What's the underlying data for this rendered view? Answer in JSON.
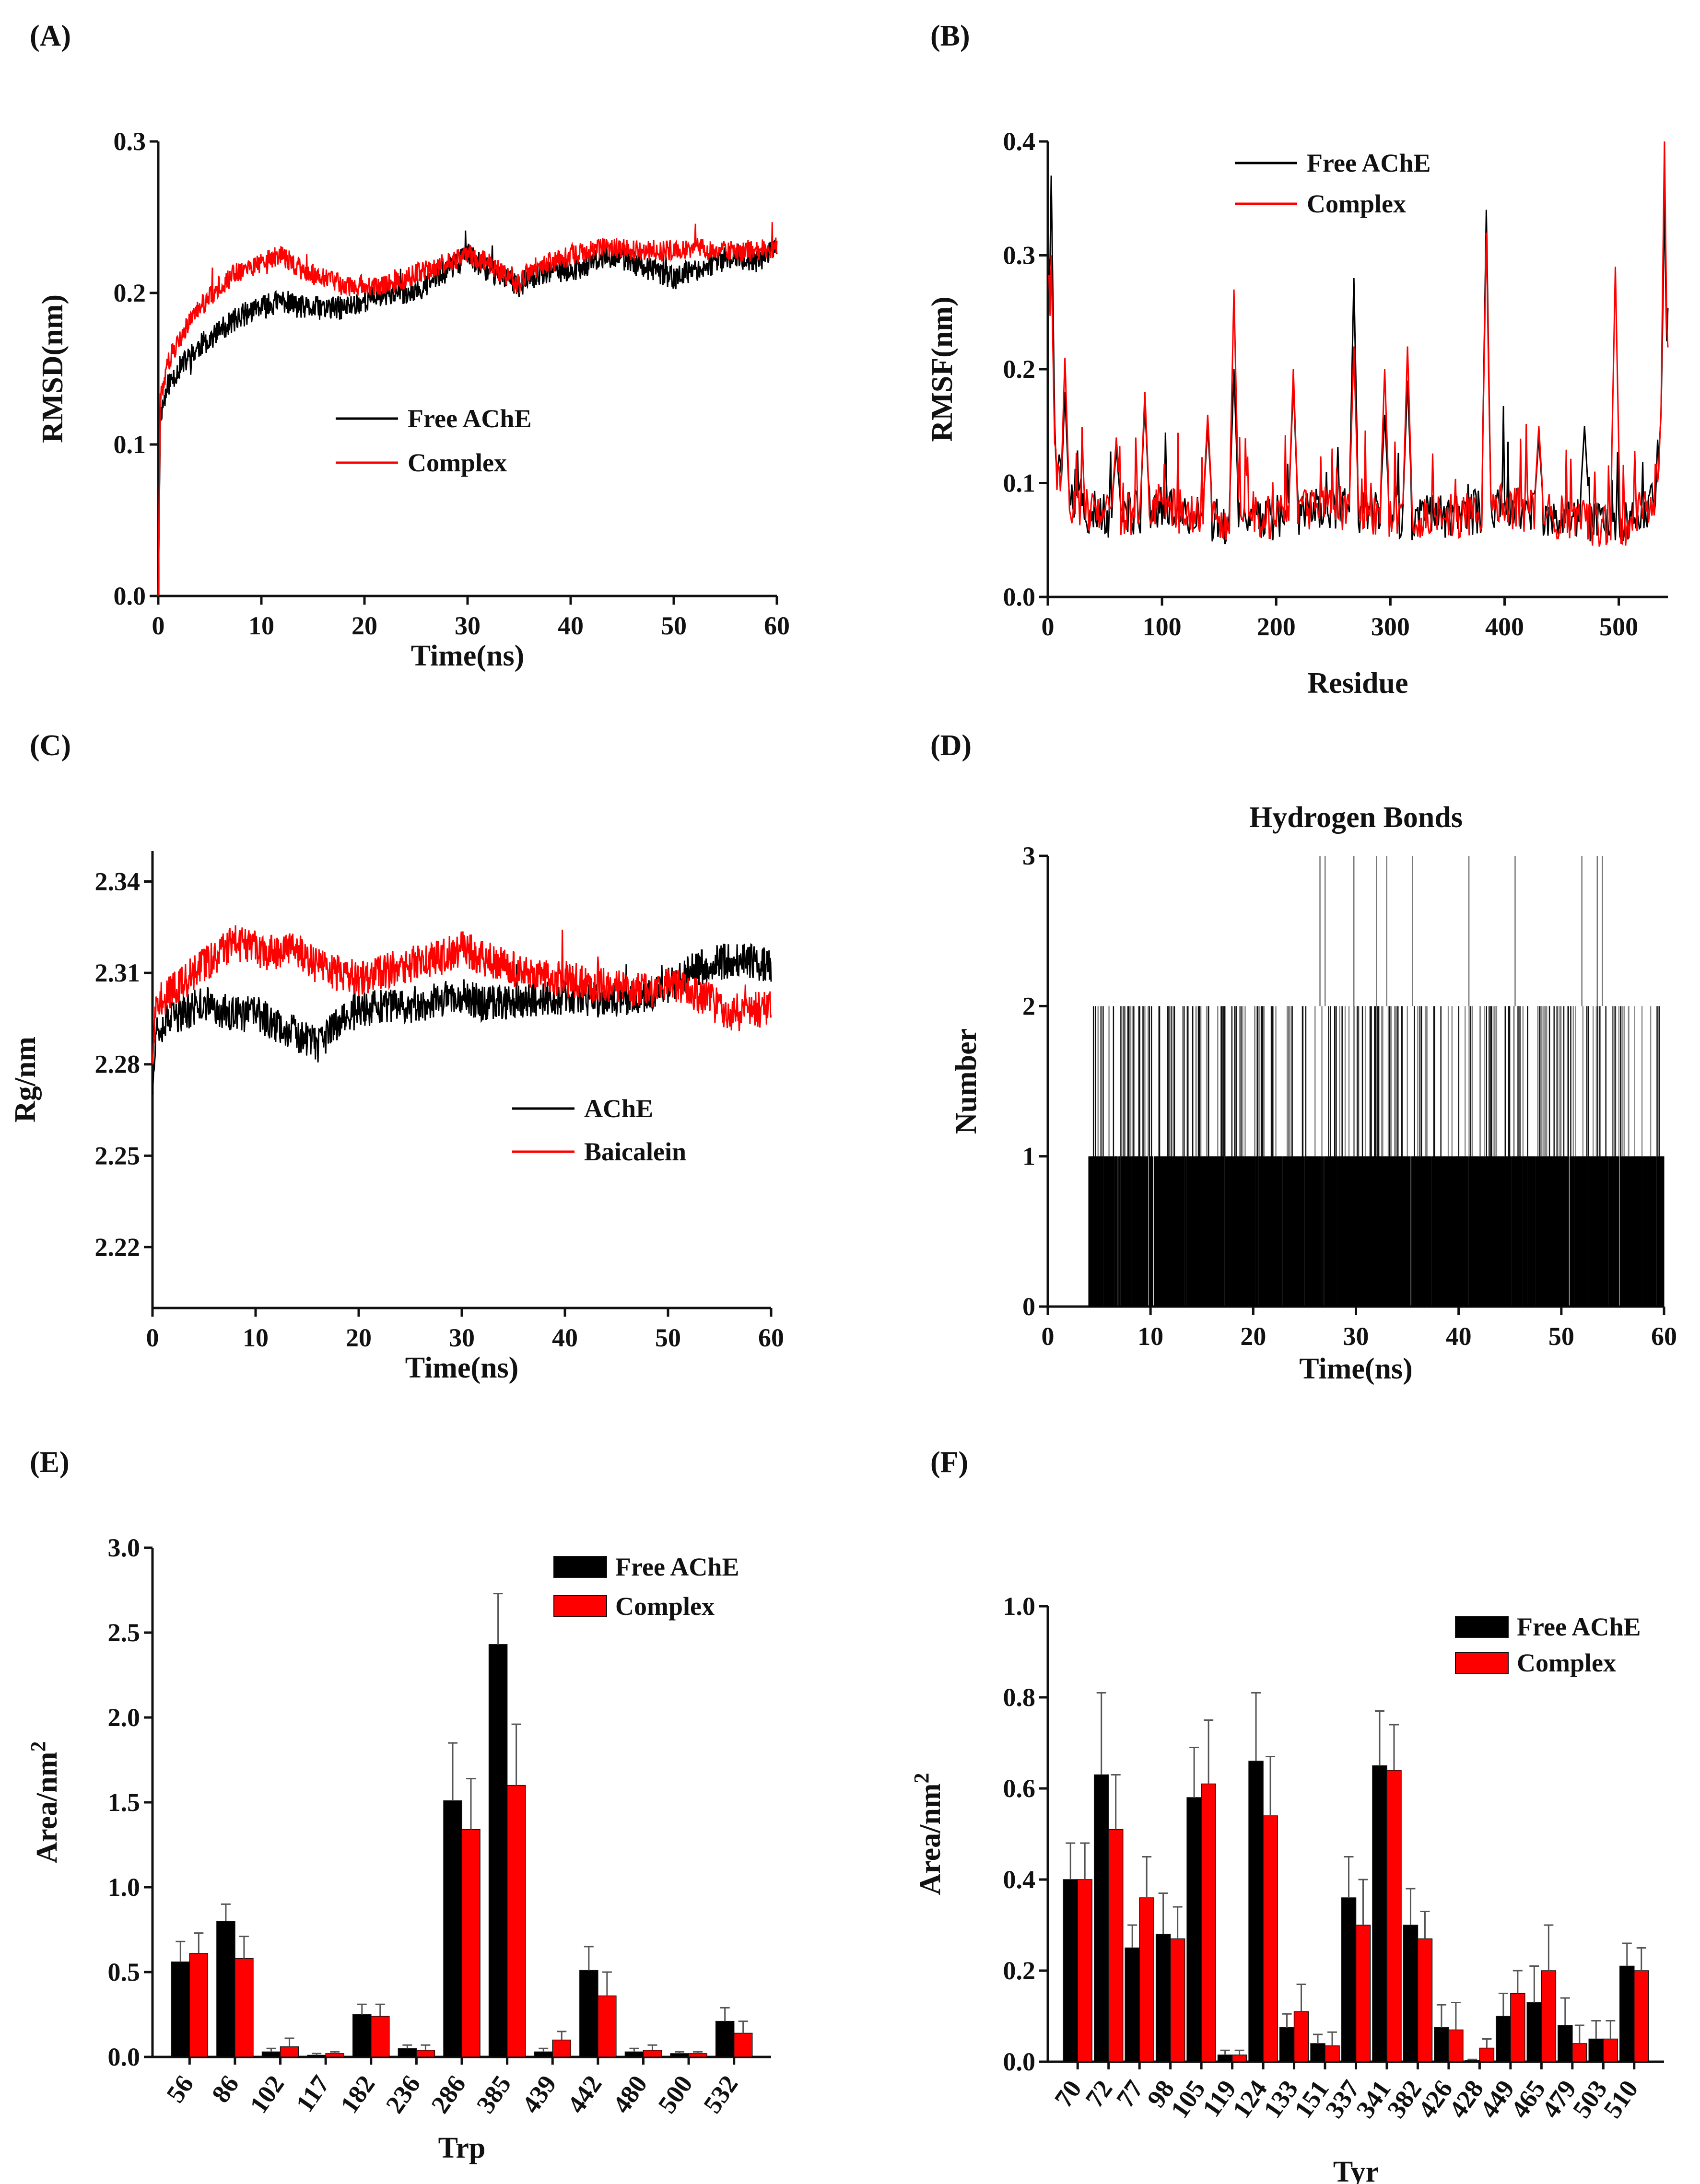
{
  "chart_data": [
    {
      "id": "A",
      "panel_label": "(A)",
      "type": "line",
      "xlabel": "Time(ns)",
      "ylabel": "RMSD(nm)",
      "xlim": [
        0,
        60
      ],
      "ylim": [
        0,
        0.3
      ],
      "xticks": [
        0,
        10,
        20,
        30,
        40,
        50,
        60
      ],
      "yticks": [
        "0.0",
        "0.1",
        "0.2",
        "0.3"
      ],
      "legend": "center-right",
      "series": [
        {
          "name": "Free AChE",
          "color": "#000000",
          "x": [
            0,
            0.2,
            1,
            2,
            4,
            6,
            8,
            10,
            12,
            14,
            16,
            18,
            20,
            22,
            24,
            26,
            28,
            30,
            32,
            34,
            35,
            36,
            38,
            40,
            42,
            44,
            46,
            48,
            50,
            52,
            54,
            56,
            58,
            60
          ],
          "y": [
            0,
            0.12,
            0.14,
            0.15,
            0.165,
            0.175,
            0.185,
            0.19,
            0.195,
            0.19,
            0.19,
            0.19,
            0.195,
            0.2,
            0.2,
            0.205,
            0.215,
            0.225,
            0.215,
            0.21,
            0.205,
            0.21,
            0.215,
            0.215,
            0.22,
            0.225,
            0.22,
            0.215,
            0.21,
            0.215,
            0.22,
            0.225,
            0.22,
            0.23
          ],
          "noise": 0.008
        },
        {
          "name": "Complex",
          "color": "#ff0000",
          "x": [
            0,
            0.2,
            1,
            2,
            4,
            6,
            8,
            10,
            12,
            14,
            16,
            18,
            20,
            22,
            24,
            26,
            28,
            30,
            32,
            34,
            35,
            36,
            38,
            40,
            42,
            44,
            46,
            48,
            50,
            52,
            54,
            56,
            58,
            60
          ],
          "y": [
            0,
            0.13,
            0.155,
            0.17,
            0.19,
            0.205,
            0.215,
            0.22,
            0.225,
            0.215,
            0.21,
            0.205,
            0.205,
            0.205,
            0.21,
            0.215,
            0.22,
            0.225,
            0.22,
            0.21,
            0.205,
            0.215,
            0.22,
            0.225,
            0.228,
            0.23,
            0.228,
            0.228,
            0.228,
            0.23,
            0.228,
            0.228,
            0.228,
            0.23
          ],
          "noise": 0.007
        }
      ]
    },
    {
      "id": "B",
      "panel_label": "(B)",
      "type": "line",
      "xlabel": "Residue",
      "ylabel": "RMSF(nm)",
      "xlim": [
        0,
        543
      ],
      "ylim": [
        0,
        0.4
      ],
      "xticks": [
        0,
        100,
        200,
        300,
        400,
        500
      ],
      "yticks": [
        "0.0",
        "0.1",
        "0.2",
        "0.3",
        "0.4"
      ],
      "legend": "top-left",
      "baseline": [
        [
          0,
          0.33
        ],
        [
          5,
          0.12
        ],
        [
          20,
          0.08
        ],
        [
          60,
          0.07
        ],
        [
          100,
          0.08
        ],
        [
          150,
          0.065
        ],
        [
          200,
          0.07
        ],
        [
          250,
          0.08
        ],
        [
          300,
          0.07
        ],
        [
          350,
          0.07
        ],
        [
          400,
          0.08
        ],
        [
          450,
          0.07
        ],
        [
          500,
          0.06
        ],
        [
          530,
          0.08
        ],
        [
          543,
          0.2
        ]
      ],
      "series": [
        {
          "name": "Free AChE",
          "color": "#000000",
          "peaks": [
            [
              3,
              0.37
            ],
            [
              15,
              0.18
            ],
            [
              60,
              0.13
            ],
            [
              85,
              0.17
            ],
            [
              140,
              0.15
            ],
            [
              163,
              0.2
            ],
            [
              215,
              0.19
            ],
            [
              268,
              0.28
            ],
            [
              295,
              0.16
            ],
            [
              315,
              0.19
            ],
            [
              384,
              0.34
            ],
            [
              430,
              0.14
            ],
            [
              470,
              0.15
            ],
            [
              540,
              0.35
            ]
          ],
          "noise": 0.02
        },
        {
          "name": "Complex",
          "color": "#ff0000",
          "peaks": [
            [
              3,
              0.3
            ],
            [
              15,
              0.21
            ],
            [
              60,
              0.14
            ],
            [
              85,
              0.18
            ],
            [
              140,
              0.16
            ],
            [
              163,
              0.27
            ],
            [
              215,
              0.2
            ],
            [
              268,
              0.22
            ],
            [
              295,
              0.2
            ],
            [
              315,
              0.22
            ],
            [
              384,
              0.32
            ],
            [
              430,
              0.15
            ],
            [
              497,
              0.29
            ],
            [
              540,
              0.4
            ]
          ],
          "noise": 0.02
        }
      ]
    },
    {
      "id": "C",
      "panel_label": "(C)",
      "type": "line",
      "xlabel": "Time(ns)",
      "ylabel": "Rg/nm",
      "xlim": [
        0,
        60
      ],
      "ylim": [
        2.2,
        2.35
      ],
      "xticks": [
        0,
        10,
        20,
        30,
        40,
        50,
        60
      ],
      "yticks": [
        "2.22",
        "2.25",
        "2.28",
        "2.31",
        "2.34"
      ],
      "legend": "center-right",
      "series": [
        {
          "name": "AChE",
          "color": "#000000",
          "x": [
            0,
            0.3,
            2,
            5,
            8,
            10,
            12,
            14,
            16,
            18,
            20,
            24,
            28,
            30,
            32,
            36,
            40,
            44,
            48,
            50,
            52,
            54,
            56,
            58,
            60
          ],
          "y": [
            2.27,
            2.292,
            2.295,
            2.3,
            2.296,
            2.297,
            2.293,
            2.29,
            2.286,
            2.294,
            2.298,
            2.299,
            2.301,
            2.303,
            2.3,
            2.301,
            2.302,
            2.301,
            2.303,
            2.306,
            2.31,
            2.313,
            2.314,
            2.314,
            2.312
          ],
          "noise": 0.006
        },
        {
          "name": "Baicalein",
          "color": "#ff0000",
          "x": [
            0,
            0.3,
            2,
            4,
            6,
            8,
            10,
            12,
            14,
            16,
            18,
            20,
            24,
            28,
            30,
            32,
            36,
            40,
            44,
            48,
            50,
            52,
            54,
            56,
            58,
            60
          ],
          "y": [
            2.28,
            2.3,
            2.304,
            2.31,
            2.315,
            2.32,
            2.318,
            2.316,
            2.318,
            2.312,
            2.31,
            2.308,
            2.312,
            2.315,
            2.318,
            2.315,
            2.31,
            2.308,
            2.306,
            2.304,
            2.306,
            2.304,
            2.301,
            2.296,
            2.298,
            2.298
          ],
          "noise": 0.006
        }
      ]
    },
    {
      "id": "D",
      "panel_label": "(D)",
      "type": "bar",
      "title": "Hydrogen Bonds",
      "xlabel": "Time(ns)",
      "ylabel": "Number",
      "xlim": [
        0,
        60
      ],
      "ylim": [
        0,
        3
      ],
      "xticks": [
        0,
        10,
        20,
        30,
        40,
        50,
        60
      ],
      "yticks": [
        "0",
        "1",
        "2",
        "3"
      ],
      "onset_ns": 4,
      "three_bond_times": [
        26.5,
        27,
        29.8,
        32,
        33,
        35.5,
        41,
        45.5,
        52,
        53.5,
        54
      ],
      "series": [
        {
          "name": "Hydrogen Bonds",
          "color": "#000000"
        }
      ]
    },
    {
      "id": "E",
      "panel_label": "(E)",
      "type": "bar",
      "xlabel": "Trp",
      "ylabel": "Area/nm",
      "ylabel_sup": "2",
      "ylim": [
        0,
        3.0
      ],
      "yticks": [
        "0.0",
        "0.5",
        "1.0",
        "1.5",
        "2.0",
        "2.5",
        "3.0"
      ],
      "legend": "top-right",
      "categories": [
        "56",
        "86",
        "102",
        "117",
        "182",
        "236",
        "286",
        "385",
        "439",
        "442",
        "480",
        "500",
        "532"
      ],
      "series": [
        {
          "name": "Free AChE",
          "color": "#000000",
          "values": [
            0.56,
            0.8,
            0.03,
            0.01,
            0.25,
            0.05,
            1.51,
            2.43,
            0.03,
            0.51,
            0.03,
            0.02,
            0.21
          ],
          "errors": [
            0.12,
            0.1,
            0.02,
            0.01,
            0.06,
            0.02,
            0.34,
            0.3,
            0.02,
            0.14,
            0.02,
            0.01,
            0.08
          ]
        },
        {
          "name": "Complex",
          "color": "#ff0000",
          "values": [
            0.61,
            0.58,
            0.06,
            0.02,
            0.24,
            0.04,
            1.34,
            1.6,
            0.1,
            0.36,
            0.04,
            0.02,
            0.14
          ],
          "errors": [
            0.12,
            0.13,
            0.05,
            0.01,
            0.07,
            0.03,
            0.3,
            0.36,
            0.05,
            0.14,
            0.03,
            0.01,
            0.07
          ]
        }
      ]
    },
    {
      "id": "F",
      "panel_label": "(F)",
      "type": "bar",
      "xlabel": "Tyr",
      "ylabel": "Area/nm",
      "ylabel_sup": "2",
      "ylim": [
        0,
        1.0
      ],
      "yticks": [
        "0.0",
        "0.2",
        "0.4",
        "0.6",
        "0.8",
        "1.0"
      ],
      "legend": "top-right",
      "categories": [
        "70",
        "72",
        "77",
        "98",
        "105",
        "119",
        "124",
        "133",
        "151",
        "337",
        "341",
        "382",
        "426",
        "428",
        "449",
        "465",
        "479",
        "503",
        "510"
      ],
      "series": [
        {
          "name": "Free AChE",
          "color": "#000000",
          "values": [
            0.4,
            0.63,
            0.25,
            0.28,
            0.58,
            0.015,
            0.66,
            0.075,
            0.04,
            0.36,
            0.65,
            0.3,
            0.075,
            0.003,
            0.1,
            0.13,
            0.08,
            0.05,
            0.21
          ],
          "errors": [
            0.08,
            0.18,
            0.05,
            0.09,
            0.11,
            0.01,
            0.15,
            0.03,
            0.02,
            0.09,
            0.12,
            0.08,
            0.05,
            0.002,
            0.05,
            0.08,
            0.06,
            0.04,
            0.05
          ]
        },
        {
          "name": "Complex",
          "color": "#ff0000",
          "values": [
            0.4,
            0.51,
            0.36,
            0.27,
            0.61,
            0.015,
            0.54,
            0.11,
            0.035,
            0.3,
            0.64,
            0.27,
            0.07,
            0.03,
            0.15,
            0.2,
            0.04,
            0.05,
            0.2
          ],
          "errors": [
            0.08,
            0.12,
            0.09,
            0.07,
            0.14,
            0.01,
            0.13,
            0.06,
            0.03,
            0.1,
            0.1,
            0.06,
            0.06,
            0.02,
            0.05,
            0.1,
            0.04,
            0.04,
            0.05
          ]
        }
      ]
    }
  ]
}
